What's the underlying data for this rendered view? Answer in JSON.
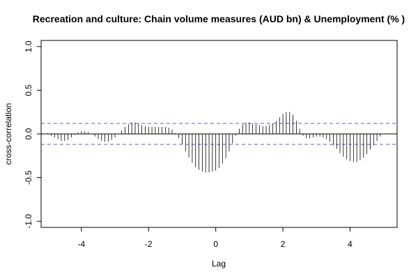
{
  "chart_data": {
    "type": "bar",
    "title": "Recreation and culture: Chain volume measures (AUD bn) & Unemployment (% )",
    "xlabel": "Lag",
    "ylabel": "cross-correlation",
    "xlim": [
      -5.2,
      5.4
    ],
    "ylim": [
      -1.07,
      1.07
    ],
    "x_ticks": [
      -4,
      -2,
      0,
      2,
      4
    ],
    "y_ticks": [
      -1.0,
      -0.5,
      0.0,
      0.5,
      1.0
    ],
    "x_tick_labels": [
      "-4",
      "-2",
      "0",
      "2",
      "4"
    ],
    "y_tick_labels": [
      "-1.0",
      "-0.5",
      "0.0",
      "0.5",
      "1.0"
    ],
    "confidence_bounds": [
      0.12,
      -0.12
    ],
    "grid": false,
    "x": [
      -5.0,
      -4.9,
      -4.8,
      -4.7,
      -4.6,
      -4.5,
      -4.4,
      -4.3,
      -4.2,
      -4.1,
      -4.0,
      -3.9,
      -3.8,
      -3.7,
      -3.6,
      -3.5,
      -3.4,
      -3.3,
      -3.2,
      -3.1,
      -3.0,
      -2.9,
      -2.8,
      -2.7,
      -2.6,
      -2.5,
      -2.4,
      -2.3,
      -2.2,
      -2.1,
      -2.0,
      -1.9,
      -1.8,
      -1.7,
      -1.6,
      -1.5,
      -1.4,
      -1.3,
      -1.2,
      -1.1,
      -1.0,
      -0.9,
      -0.8,
      -0.7,
      -0.6,
      -0.5,
      -0.4,
      -0.3,
      -0.2,
      -0.1,
      0.0,
      0.1,
      0.2,
      0.3,
      0.4,
      0.5,
      0.6,
      0.7,
      0.8,
      0.9,
      1.0,
      1.1,
      1.2,
      1.3,
      1.4,
      1.5,
      1.6,
      1.7,
      1.8,
      1.9,
      2.0,
      2.1,
      2.2,
      2.3,
      2.4,
      2.5,
      2.6,
      2.7,
      2.8,
      2.9,
      3.0,
      3.1,
      3.2,
      3.3,
      3.4,
      3.5,
      3.6,
      3.7,
      3.8,
      3.9,
      4.0,
      4.1,
      4.2,
      4.3,
      4.4,
      4.5,
      4.6,
      4.7,
      4.8,
      4.9,
      5.0
    ],
    "values": [
      0.01,
      -0.02,
      -0.04,
      -0.06,
      -0.08,
      -0.08,
      -0.07,
      -0.04,
      -0.01,
      0.02,
      0.03,
      0.03,
      0.02,
      0.0,
      -0.03,
      -0.06,
      -0.08,
      -0.09,
      -0.09,
      -0.07,
      -0.04,
      0.0,
      0.04,
      0.08,
      0.11,
      0.13,
      0.13,
      0.12,
      0.1,
      0.09,
      0.08,
      0.08,
      0.08,
      0.08,
      0.08,
      0.08,
      0.07,
      0.05,
      0.01,
      -0.05,
      -0.12,
      -0.2,
      -0.27,
      -0.33,
      -0.38,
      -0.41,
      -0.43,
      -0.44,
      -0.44,
      -0.43,
      -0.42,
      -0.39,
      -0.34,
      -0.28,
      -0.2,
      -0.11,
      -0.02,
      0.06,
      0.11,
      0.13,
      0.13,
      0.12,
      0.11,
      0.1,
      0.09,
      0.09,
      0.1,
      0.12,
      0.15,
      0.19,
      0.23,
      0.25,
      0.25,
      0.22,
      0.15,
      0.06,
      -0.02,
      -0.05,
      -0.05,
      -0.04,
      -0.03,
      -0.03,
      -0.04,
      -0.06,
      -0.09,
      -0.13,
      -0.17,
      -0.22,
      -0.26,
      -0.29,
      -0.31,
      -0.32,
      -0.32,
      -0.3,
      -0.27,
      -0.23,
      -0.18,
      -0.13,
      -0.08,
      -0.03,
      0.0
    ]
  }
}
